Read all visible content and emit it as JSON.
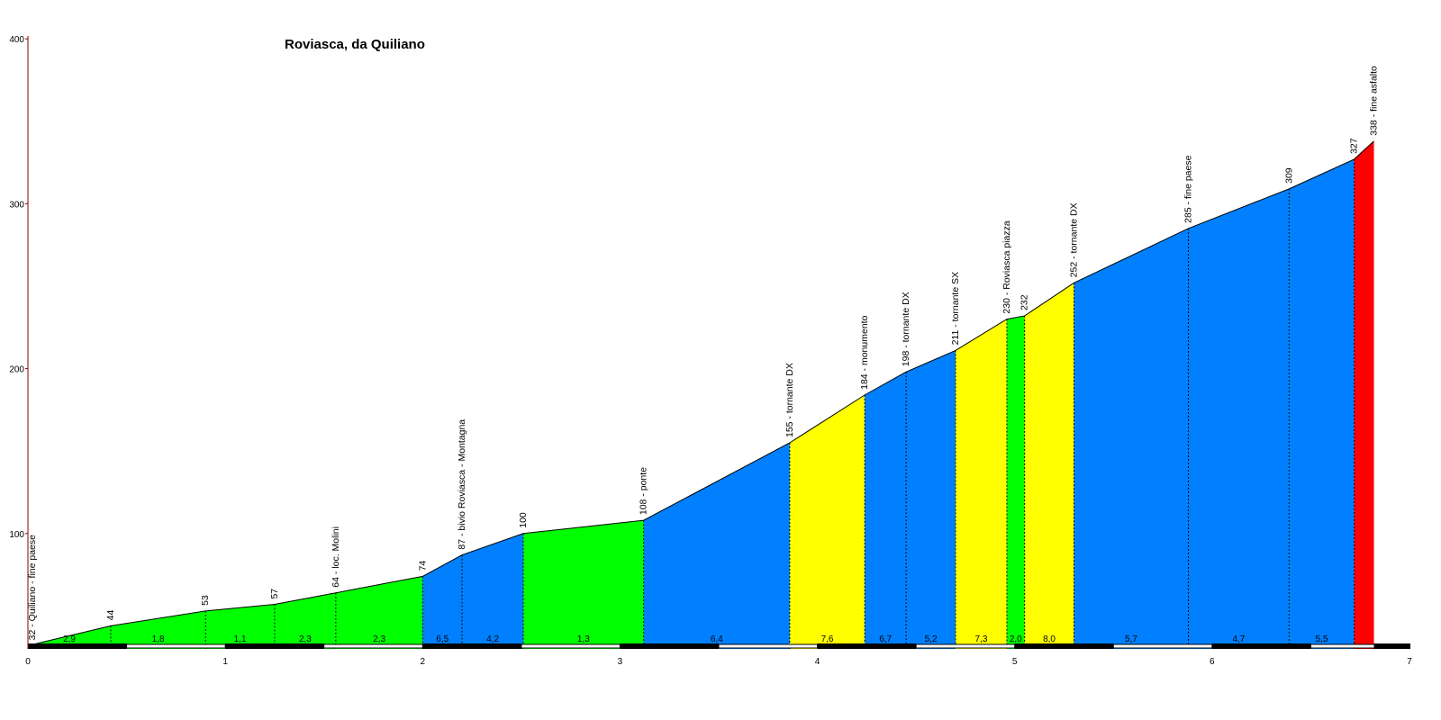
{
  "chart_data": {
    "type": "area",
    "title": "Roviasca, da Quiliano",
    "xlabel": "",
    "ylabel": "",
    "xlim": [
      0,
      7
    ],
    "ylim": [
      30,
      400
    ],
    "x_ticks": [
      "0",
      "1",
      "2",
      "3",
      "4",
      "5",
      "6",
      "7"
    ],
    "y_ticks": [
      "100",
      "200",
      "300",
      "400"
    ],
    "grid": false,
    "legend": "none",
    "colors": {
      "low": "#00ff00",
      "medium": "#0080ff",
      "high": "#ffff00",
      "steep": "#ff0000",
      "axis": "#8b0000",
      "line": "#000000"
    },
    "points": [
      {
        "km": 0.0,
        "alt": 32,
        "label": "32 - Quiliano - fine paese"
      },
      {
        "km": 0.42,
        "alt": 44,
        "label": "44"
      },
      {
        "km": 0.9,
        "alt": 53,
        "label": "53"
      },
      {
        "km": 1.25,
        "alt": 57,
        "label": "57"
      },
      {
        "km": 1.56,
        "alt": 64,
        "label": "64 - loc. Molini"
      },
      {
        "km": 2.0,
        "alt": 74,
        "label": "74"
      },
      {
        "km": 2.2,
        "alt": 87,
        "label": "87 - bivio Roviasca - Montagna"
      },
      {
        "km": 2.51,
        "alt": 100,
        "label": "100"
      },
      {
        "km": 3.12,
        "alt": 108,
        "label": "108 - ponte"
      },
      {
        "km": 3.86,
        "alt": 155,
        "label": "155 - tornante DX"
      },
      {
        "km": 4.24,
        "alt": 184,
        "label": "184 - monumento"
      },
      {
        "km": 4.45,
        "alt": 198,
        "label": "198 - tornante DX"
      },
      {
        "km": 4.7,
        "alt": 211,
        "label": "211 - tornante SX"
      },
      {
        "km": 4.96,
        "alt": 230,
        "label": "230 - Roviasca piazza"
      },
      {
        "km": 5.05,
        "alt": 232,
        "label": "232"
      },
      {
        "km": 5.3,
        "alt": 252,
        "label": "252 - tornante DX"
      },
      {
        "km": 5.88,
        "alt": 285,
        "label": "285 - fine paese"
      },
      {
        "km": 6.39,
        "alt": 309,
        "label": "309"
      },
      {
        "km": 6.72,
        "alt": 327,
        "label": "327"
      },
      {
        "km": 6.82,
        "alt": 338,
        "label": "338 - fine asfalto"
      }
    ],
    "segments": [
      {
        "gradient": "2,9",
        "color": "low"
      },
      {
        "gradient": "1,8",
        "color": "low"
      },
      {
        "gradient": "1,1",
        "color": "low"
      },
      {
        "gradient": "2,3",
        "color": "low"
      },
      {
        "gradient": "2,3",
        "color": "low"
      },
      {
        "gradient": "6,5",
        "color": "medium"
      },
      {
        "gradient": "4,2",
        "color": "medium"
      },
      {
        "gradient": "1,3",
        "color": "low"
      },
      {
        "gradient": "6,4",
        "color": "medium"
      },
      {
        "gradient": "7,6",
        "color": "high"
      },
      {
        "gradient": "6,7",
        "color": "medium"
      },
      {
        "gradient": "5,2",
        "color": "medium"
      },
      {
        "gradient": "7,3",
        "color": "high"
      },
      {
        "gradient": "2,0",
        "color": "low"
      },
      {
        "gradient": "8,0",
        "color": "high"
      },
      {
        "gradient": "5,7",
        "color": "medium"
      },
      {
        "gradient": "4,7",
        "color": "medium"
      },
      {
        "gradient": "5,5",
        "color": "medium"
      },
      {
        "gradient": "",
        "color": "steep"
      }
    ]
  }
}
